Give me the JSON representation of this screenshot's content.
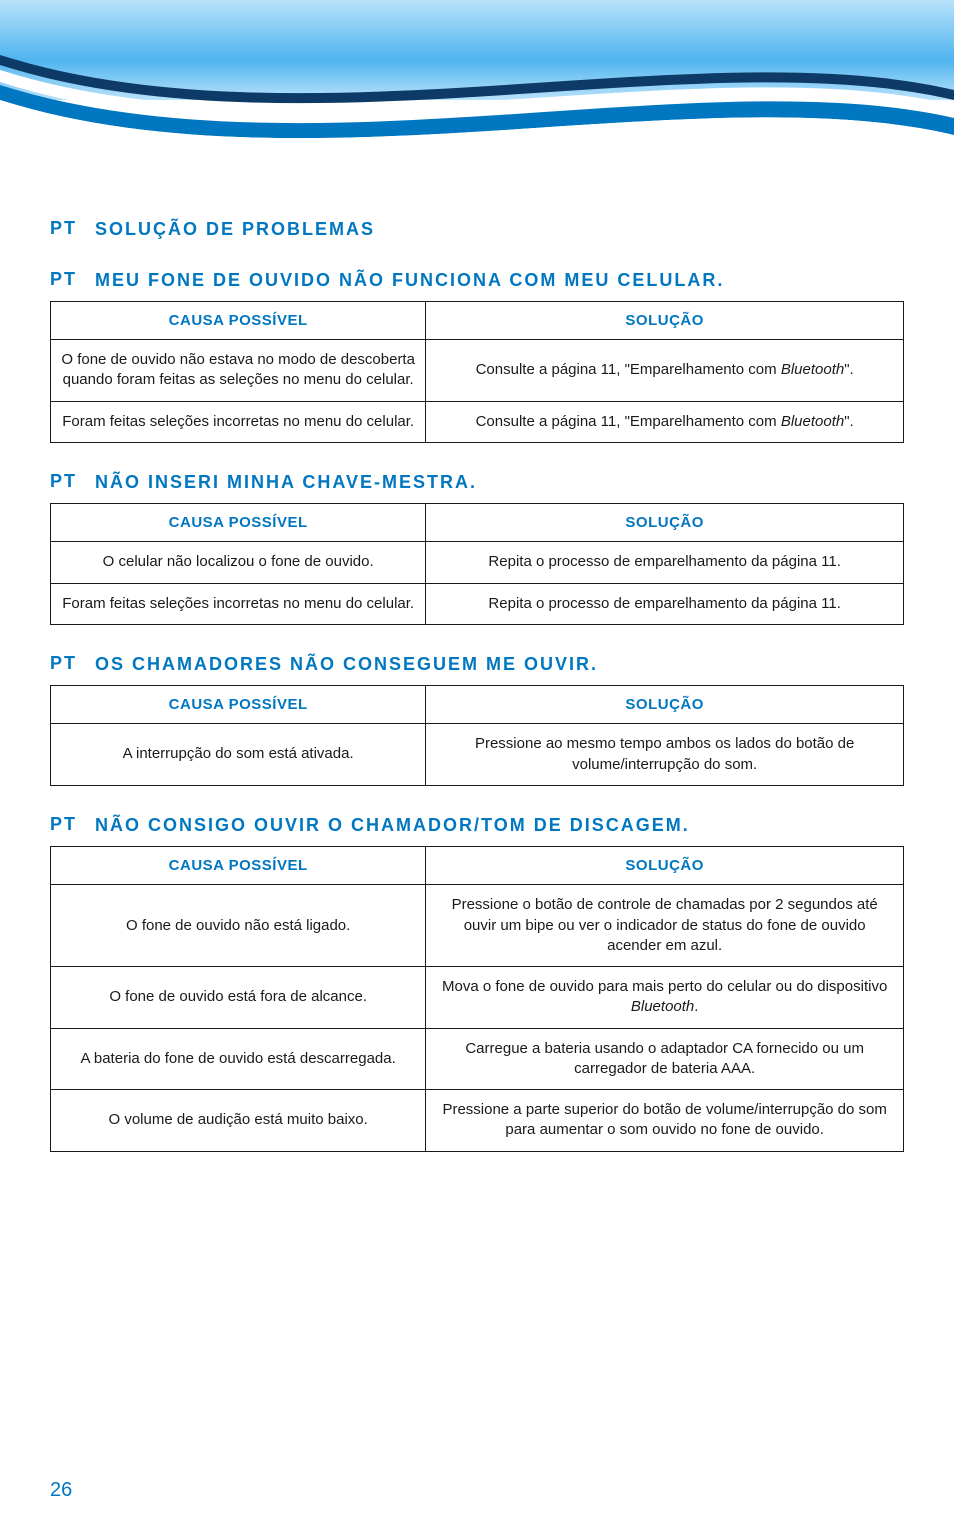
{
  "header": {
    "grad_top": "#b8e2fb",
    "grad_mid": "#4fb4ef",
    "grad_deep": "#0077c0",
    "stripe_dark": "#0d3a66",
    "stripe_light": "#ffffff"
  },
  "labels": {
    "pt": "PT",
    "cause": "CAUSA POSSÍVEL",
    "solution": "SOLUÇÃO"
  },
  "page_number": "26",
  "sections": [
    {
      "id": "s0",
      "heading": "SOLUÇÃO DE PROBLEMAS",
      "has_table": false
    },
    {
      "id": "s1",
      "heading": "MEU FONE DE OUVIDO NÃO FUNCIONA COM MEU CELULAR.",
      "has_table": true,
      "rows": [
        {
          "cause": "O fone de ouvido não estava no modo de descoberta quando foram feitas as seleções no menu do celular.",
          "solution": "Consulte a página 11, \"Emparelhamento com <em>Bluetooth</em>\"."
        },
        {
          "cause": "Foram feitas seleções incorretas no menu do celular.",
          "solution": "Consulte a página 11, \"Emparelhamento com <em>Bluetooth</em>\"."
        }
      ]
    },
    {
      "id": "s2",
      "heading": "NÃO INSERI MINHA CHAVE-MESTRA.",
      "has_table": true,
      "rows": [
        {
          "cause": "O celular não localizou o fone de ouvido.",
          "solution": "Repita o processo de emparelhamento da página 11."
        },
        {
          "cause": "Foram feitas seleções incorretas no menu do celular.",
          "solution": "Repita o processo de emparelhamento da página 11."
        }
      ]
    },
    {
      "id": "s3",
      "heading": "OS CHAMADORES NÃO CONSEGUEM ME OUVIR.",
      "has_table": true,
      "rows": [
        {
          "cause": "A interrupção do som está ativada.",
          "solution": "Pressione ao mesmo tempo ambos os lados do botão de volume/interrupção do som."
        }
      ]
    },
    {
      "id": "s4",
      "heading": "NÃO CONSIGO OUVIR O CHAMADOR/TOM DE DISCAGEM.",
      "has_table": true,
      "rows": [
        {
          "cause": "O fone de ouvido não está ligado.",
          "solution": "Pressione o botão de controle de chamadas por 2 segundos até ouvir um bipe ou ver o indicador de status do fone de ouvido acender em azul."
        },
        {
          "cause": "O fone de ouvido está fora de alcance.",
          "solution": "Mova o fone de ouvido para mais perto do celular ou do dispositivo <em>Bluetooth</em>."
        },
        {
          "cause": "A bateria do fone de ouvido está descarregada.",
          "solution": "Carregue a bateria usando o adaptador CA fornecido ou um carregador de bateria AAA."
        },
        {
          "cause": "O volume de audição está muito baixo.",
          "solution": "Pressione a parte superior do botão de volume/interrupção do som para aumentar o som ouvido no fone de ouvido."
        }
      ]
    }
  ]
}
